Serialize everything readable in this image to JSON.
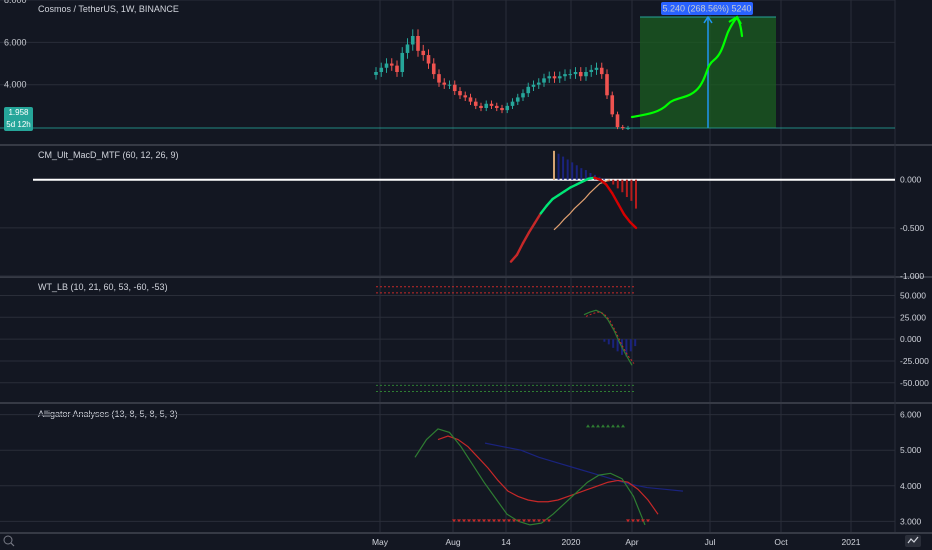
{
  "header": {
    "title": "Cosmos / TetherUS, 1W, BINANCE"
  },
  "price_badge": {
    "value": "1.958",
    "countdown": "5d 12h"
  },
  "measure_label": "5.240 (268.56%) 5240",
  "time_axis": {
    "labels": [
      "May",
      "Aug",
      "14",
      "2020",
      "Apr",
      "Jul",
      "Oct",
      "2021"
    ]
  },
  "colors": {
    "bg": "#131722",
    "up": "#26a69a",
    "down": "#ef5350",
    "grid": "#2a2e39",
    "accent": "#2962ff",
    "green_zone": "#1b5e20",
    "annotation": "#00ff00"
  },
  "icons": {
    "zoom": "zoom-icon",
    "brand": "tradingview-logo-icon"
  },
  "chart_data": [
    {
      "type": "candlestick",
      "title": "Cosmos / TetherUS, 1W, BINANCE",
      "y_ticks": [
        "8.000",
        "6.000",
        "4.000"
      ],
      "ylim": [
        1.2,
        8.0
      ],
      "close_series": [
        4.6,
        4.8,
        5.0,
        4.9,
        4.6,
        5.5,
        5.9,
        6.3,
        5.6,
        5.4,
        5.0,
        4.5,
        4.1,
        4.0,
        4.0,
        3.7,
        3.5,
        3.4,
        3.2,
        3.0,
        2.9,
        3.1,
        3.0,
        2.9,
        2.8,
        3.0,
        3.2,
        3.4,
        3.6,
        3.9,
        4.0,
        4.1,
        4.3,
        4.4,
        4.3,
        4.4,
        4.5,
        4.5,
        4.6,
        4.4,
        4.6,
        4.7,
        4.8,
        4.5,
        3.5,
        2.6,
        2.0,
        1.958,
        1.958
      ],
      "current_price": 1.958,
      "projection_target": 7.2,
      "annotation": "5.240 (268.56%) 5240"
    },
    {
      "type": "line",
      "title": "CM_Ult_MacD_MTF (60, 12, 26, 9)",
      "y_ticks": [
        "0.000",
        "-0.500",
        "-1.000"
      ],
      "ylim": [
        -1.0,
        0.35
      ],
      "macd": [
        -0.85,
        -0.78,
        -0.66,
        -0.55,
        -0.45,
        -0.35,
        -0.27,
        -0.2,
        -0.16,
        -0.12,
        -0.08,
        -0.05,
        -0.02,
        0.01,
        0.02,
        0.0,
        -0.05,
        -0.14,
        -0.25,
        -0.36,
        -0.44,
        -0.5
      ],
      "signal": [
        -0.52,
        -0.47,
        -0.41,
        -0.36,
        -0.3,
        -0.25,
        -0.2,
        -0.14,
        -0.09,
        -0.04,
        -0.02,
        0.0
      ],
      "histogram": [
        0.3,
        0.27,
        0.24,
        0.21,
        0.18,
        0.15,
        0.12,
        0.1,
        0.07,
        0.05,
        0.03,
        0.01,
        -0.02,
        -0.05,
        -0.09,
        -0.13,
        -0.18,
        -0.22,
        -0.3
      ]
    },
    {
      "type": "line",
      "title": "WT_LB (10, 21, 60, 53, -60, -53)",
      "y_ticks": [
        "50.000",
        "25.000",
        "0.000",
        "-25.000",
        "-50.000"
      ],
      "ylim": [
        -72,
        70
      ],
      "levels": [
        60,
        53,
        -53,
        -60
      ],
      "wt1": [
        28,
        31,
        33,
        30,
        22,
        10,
        -5,
        -18,
        -30
      ],
      "wt2": [
        26,
        29,
        31,
        29,
        21,
        8,
        -7,
        -19,
        -28
      ],
      "histogram": [
        0,
        -3,
        -6,
        -10,
        -14,
        -18,
        -20,
        -14,
        -8
      ]
    },
    {
      "type": "line",
      "title": "Alligator Analyses (13, 8, 5, 8, 5, 3)",
      "y_ticks": [
        "6.000",
        "5.000",
        "4.000",
        "3.000"
      ],
      "ylim": [
        2.7,
        6.3
      ],
      "jaw": [
        5.2,
        5.1,
        5.0,
        4.8,
        4.65,
        4.5,
        4.35,
        4.2,
        4.05,
        3.95,
        3.9,
        3.85
      ],
      "teeth": [
        5.3,
        5.4,
        5.3,
        5.1,
        4.8,
        4.5,
        4.15,
        3.85,
        3.7,
        3.6,
        3.55,
        3.55,
        3.6,
        3.7,
        3.8,
        3.9,
        4.0,
        4.1,
        4.15,
        4.1,
        3.9,
        3.6,
        3.2
      ],
      "lips": [
        4.8,
        5.3,
        5.6,
        5.5,
        5.1,
        4.6,
        4.1,
        3.65,
        3.2,
        3.0,
        2.9,
        2.95,
        3.2,
        3.5,
        3.8,
        4.1,
        4.3,
        4.35,
        4.2,
        3.7,
        2.9
      ],
      "markers": [
        5.7,
        3.0
      ]
    }
  ]
}
